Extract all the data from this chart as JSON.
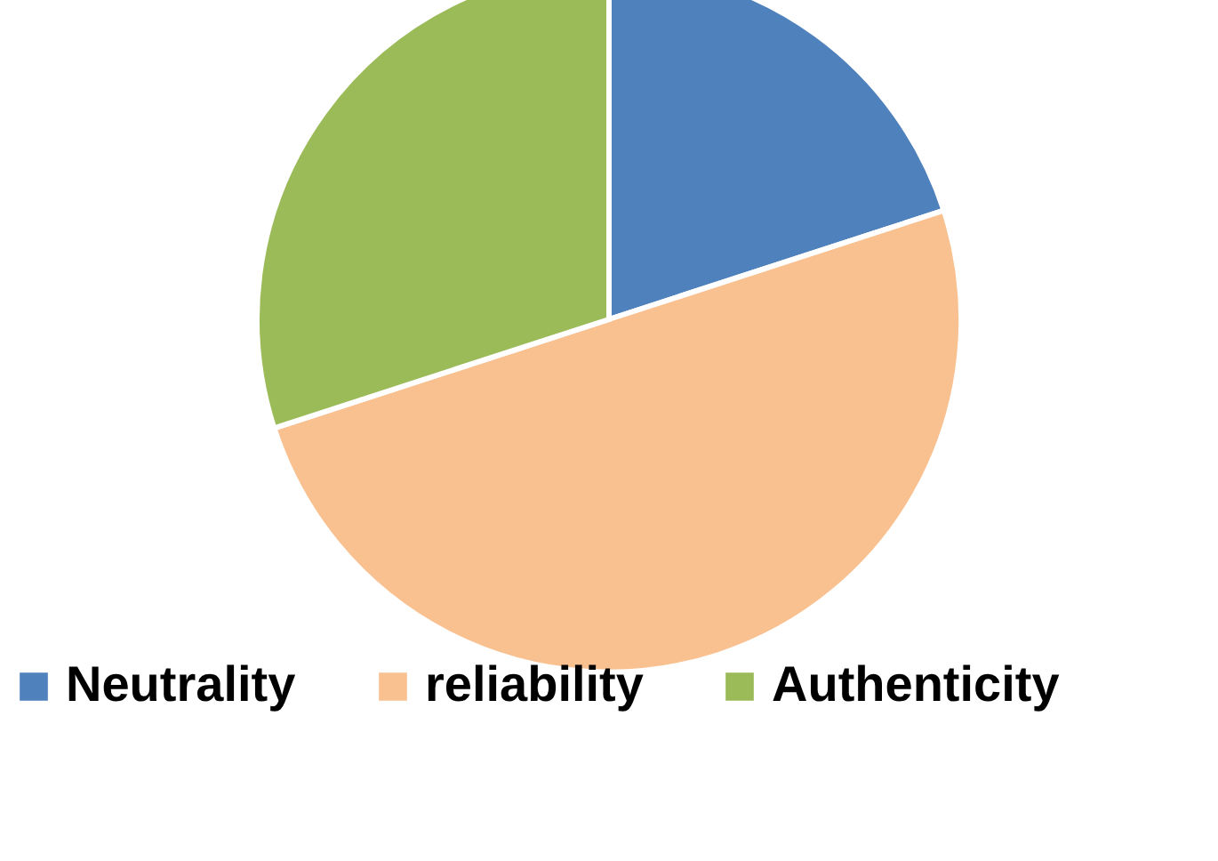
{
  "chart_data": {
    "type": "pie",
    "categories": [
      "Neutrality",
      "reliability",
      "Authenticity"
    ],
    "values": [
      20,
      50,
      30
    ],
    "colors": [
      "#4f81bd",
      "#f9c090",
      "#9bbb59"
    ],
    "legend": "bottom"
  }
}
